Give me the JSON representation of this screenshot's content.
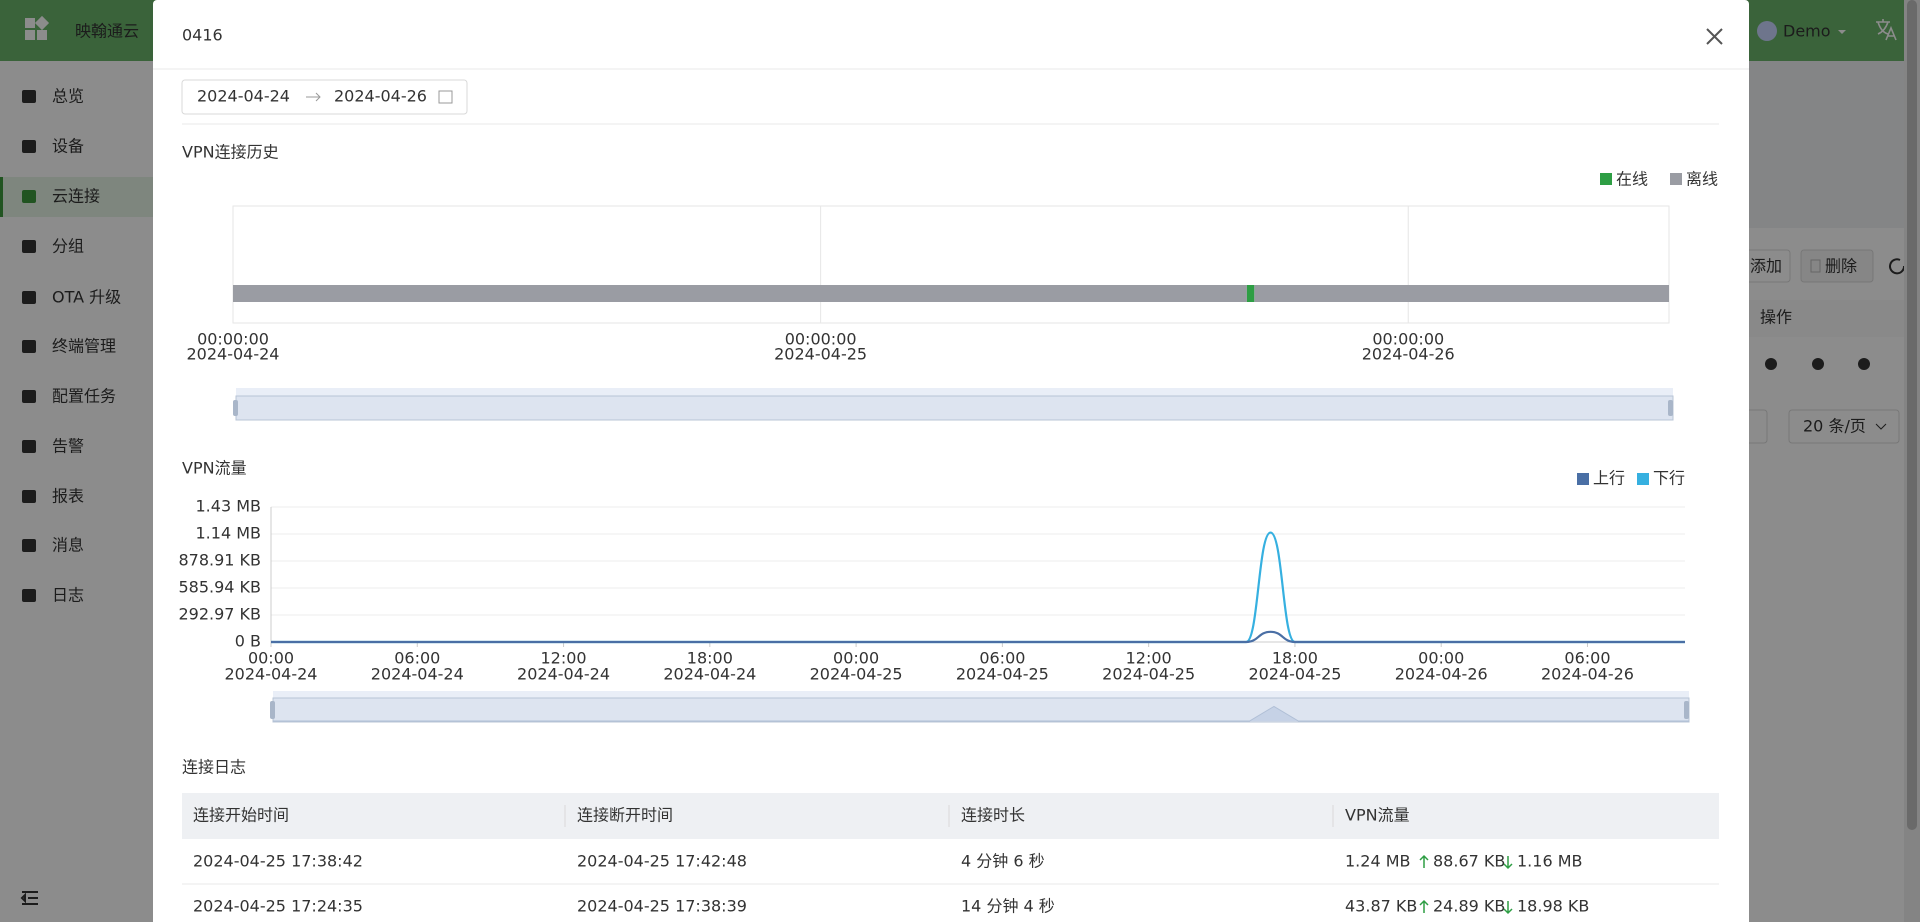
{
  "header": {
    "brand": "映翰通云",
    "user": "Demo"
  },
  "sidebar": {
    "items": [
      "总览",
      "设备",
      "云连接",
      "分组",
      "OTA 升级",
      "终端管理",
      "配置任务",
      "告警",
      "报表",
      "消息",
      "日志"
    ],
    "active": 2
  },
  "background": {
    "buttons": [
      "添加",
      "删除"
    ],
    "column": "操作",
    "page_size": "20 条/页"
  },
  "modal": {
    "title": "0416",
    "date_range": {
      "start": "2024-04-24",
      "end": "2024-04-26"
    },
    "log_title": "连接日志",
    "table": {
      "columns": [
        "连接开始时间",
        "连接断开时间",
        "连接时长",
        "VPN流量"
      ],
      "rows": [
        [
          "2024-04-25 17:38:42",
          "2024-04-25 17:42:48",
          "4 分钟 6 秒",
          "1.24 MB",
          "88.67 KB",
          "1.16 MB"
        ],
        [
          "2024-04-25 17:24:35",
          "2024-04-25 17:38:39",
          "14 分钟 4 秒",
          "43.87 KB",
          "24.89 KB",
          "18.98 KB"
        ]
      ]
    }
  },
  "chart_data": [
    {
      "type": "timeline",
      "title": "VPN连接历史",
      "xlim": [
        0,
        58.65
      ],
      "xticks": [
        {
          "value": 0,
          "label": "00:00:00",
          "sublabel": "2024-04-24"
        },
        {
          "value": 24,
          "label": "00:00:00",
          "sublabel": "2024-04-25"
        },
        {
          "value": 48,
          "label": "00:00:00",
          "sublabel": "2024-04-26"
        }
      ],
      "series": [
        {
          "name": "在线",
          "color": "#2e9e44",
          "intervals": [
            [
              41.41,
              41.71
            ]
          ]
        },
        {
          "name": "离线",
          "color": "#9a9ca3",
          "intervals": [
            [
              0,
              41.41
            ],
            [
              41.71,
              58.65
            ]
          ]
        }
      ]
    },
    {
      "type": "line",
      "title": "VPN流量",
      "xlim": [
        0,
        58
      ],
      "ylim": [
        0,
        1500000
      ],
      "yticks": [
        {
          "value": 0,
          "label": "0 B"
        },
        {
          "value": 300000,
          "label": "292.97 KB"
        },
        {
          "value": 600000,
          "label": "585.94 KB"
        },
        {
          "value": 900000,
          "label": "878.91 KB"
        },
        {
          "value": 1200000,
          "label": "1.14 MB"
        },
        {
          "value": 1500000,
          "label": "1.43 MB"
        }
      ],
      "xticks": [
        {
          "value": 0,
          "label": "00:00",
          "sublabel": "2024-04-24"
        },
        {
          "value": 6,
          "label": "06:00",
          "sublabel": "2024-04-24"
        },
        {
          "value": 12,
          "label": "12:00",
          "sublabel": "2024-04-24"
        },
        {
          "value": 18,
          "label": "18:00",
          "sublabel": "2024-04-24"
        },
        {
          "value": 24,
          "label": "00:00",
          "sublabel": "2024-04-25"
        },
        {
          "value": 30,
          "label": "06:00",
          "sublabel": "2024-04-25"
        },
        {
          "value": 36,
          "label": "12:00",
          "sublabel": "2024-04-25"
        },
        {
          "value": 42,
          "label": "18:00",
          "sublabel": "2024-04-25"
        },
        {
          "value": 48,
          "label": "00:00",
          "sublabel": "2024-04-26"
        },
        {
          "value": 54,
          "label": "06:00",
          "sublabel": "2024-04-26"
        }
      ],
      "x": [
        0,
        40,
        41,
        42,
        58
      ],
      "series": [
        {
          "name": "上行",
          "color": "#4a6fa5",
          "values": [
            0,
            0,
            113000,
            0,
            0
          ]
        },
        {
          "name": "下行",
          "color": "#36b0e0",
          "values": [
            0,
            0,
            1216000,
            0,
            0
          ]
        }
      ]
    }
  ]
}
